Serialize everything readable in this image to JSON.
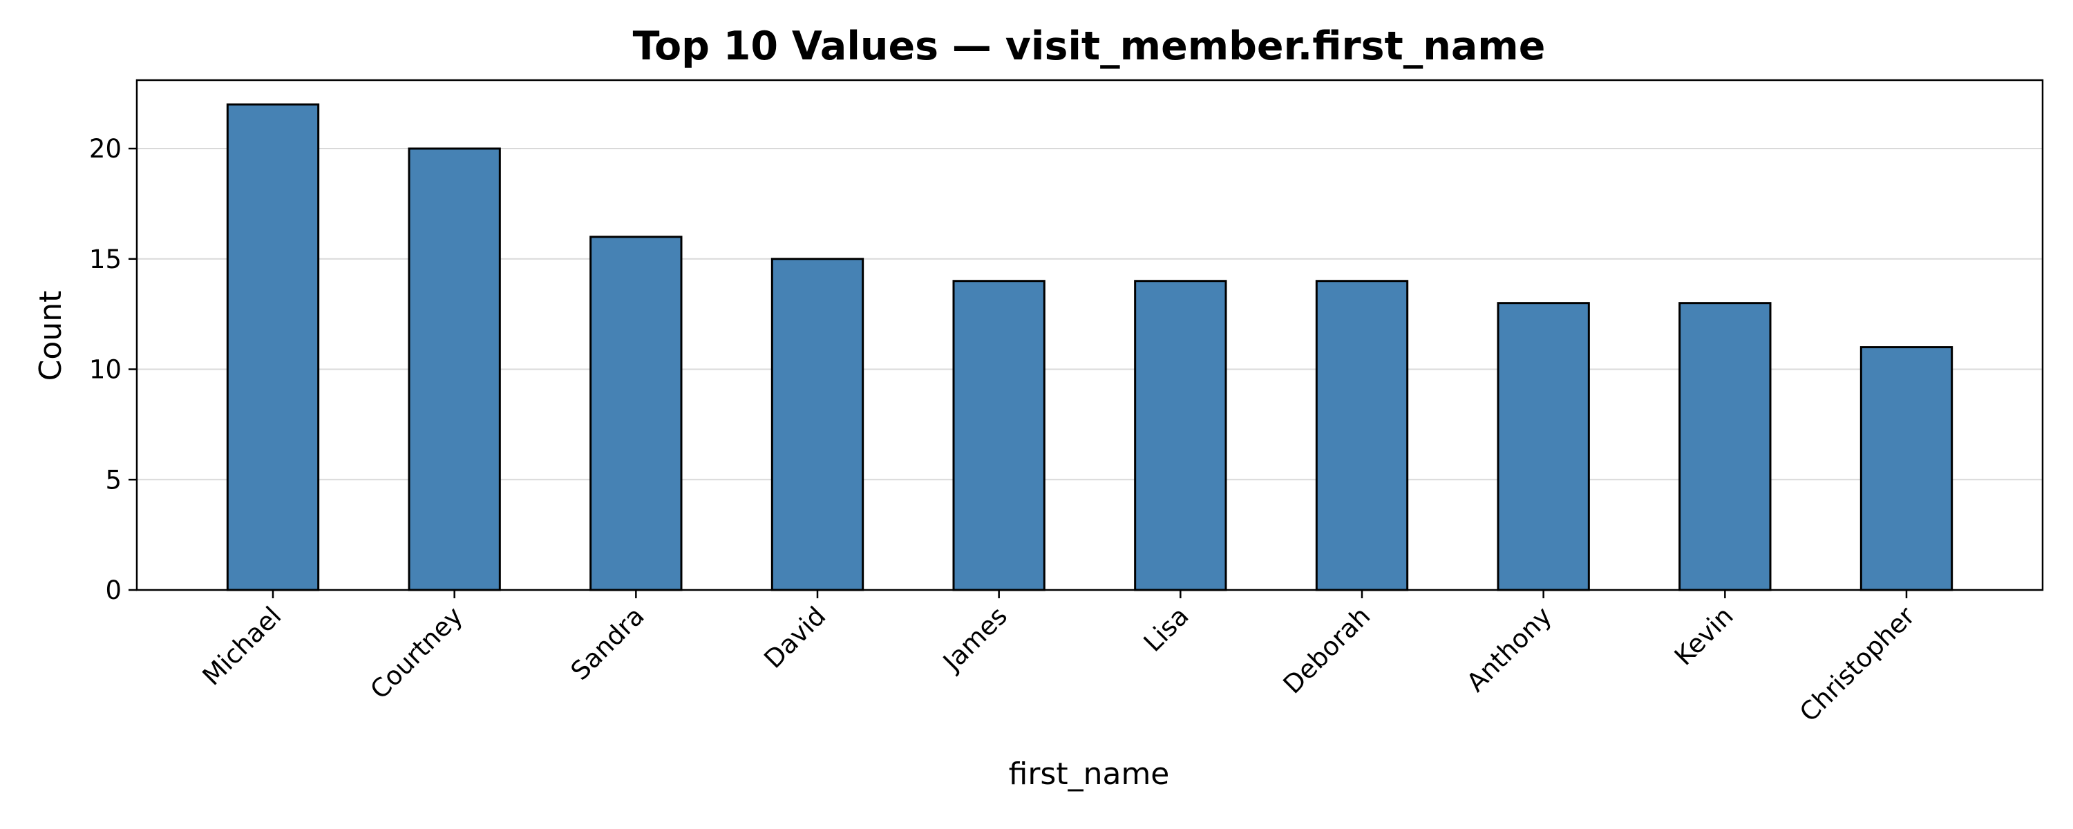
{
  "chart_data": {
    "type": "bar",
    "title": "Top 10 Values — visit_member.first_name",
    "xlabel": "first_name",
    "ylabel": "Count",
    "categories": [
      "Michael",
      "Courtney",
      "Sandra",
      "David",
      "James",
      "Lisa",
      "Deborah",
      "Anthony",
      "Kevin",
      "Christopher"
    ],
    "values": [
      22,
      20,
      16,
      15,
      14,
      14,
      14,
      13,
      13,
      11
    ],
    "ylim": [
      0,
      23.1
    ],
    "yticks": [
      0,
      5,
      10,
      15,
      20
    ],
    "grid": "horizontal",
    "bar_color": "#4682b4",
    "edge_color": "#000000"
  }
}
